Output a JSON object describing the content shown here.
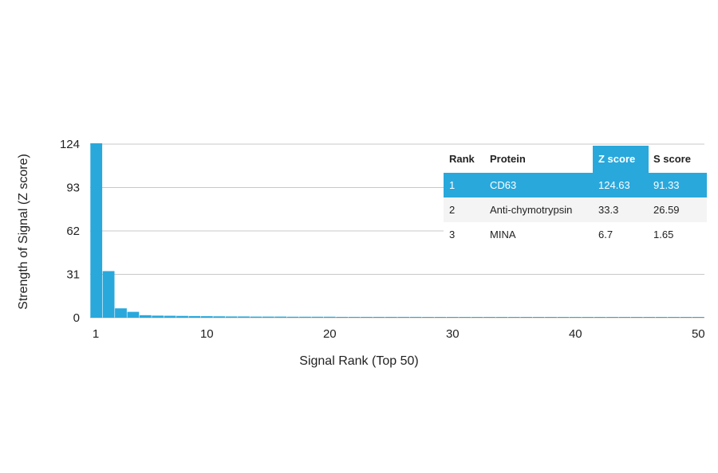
{
  "colors": {
    "bar": "#29a8dc",
    "highlight": "#29a8dc",
    "grid": "#c8c8c8",
    "text": "#222222",
    "alt_row": "#f4f4f4"
  },
  "chart_data": {
    "type": "bar",
    "xlabel": "Signal Rank (Top 50)",
    "ylabel": "Strength of Signal (Z score)",
    "xlim": [
      1,
      50
    ],
    "ylim": [
      0,
      124
    ],
    "xticks": [
      "1",
      "10",
      "20",
      "30",
      "40",
      "50"
    ],
    "yticks": [
      "0",
      "31",
      "62",
      "93",
      "124"
    ],
    "grid": "horizontal",
    "categories": [
      1,
      2,
      3,
      4,
      5,
      6,
      7,
      8,
      9,
      10,
      11,
      12,
      13,
      14,
      15,
      16,
      17,
      18,
      19,
      20,
      21,
      22,
      23,
      24,
      25,
      26,
      27,
      28,
      29,
      30,
      31,
      32,
      33,
      34,
      35,
      36,
      37,
      38,
      39,
      40,
      41,
      42,
      43,
      44,
      45,
      46,
      47,
      48,
      49,
      50
    ],
    "values": [
      124.63,
      33.3,
      6.7,
      4.2,
      1.8,
      1.5,
      1.4,
      1.3,
      1.2,
      1.1,
      1.0,
      0.9,
      0.9,
      0.8,
      0.8,
      0.8,
      0.7,
      0.7,
      0.7,
      0.7,
      0.6,
      0.6,
      0.6,
      0.6,
      0.6,
      0.6,
      0.6,
      0.5,
      0.5,
      0.5,
      0.5,
      0.5,
      0.5,
      0.5,
      0.5,
      0.5,
      0.5,
      0.5,
      0.5,
      0.5,
      0.5,
      0.5,
      0.5,
      0.5,
      0.5,
      0.5,
      0.5,
      0.5,
      0.5,
      0.5
    ]
  },
  "table": {
    "headers": [
      "Rank",
      "Protein",
      "Z score",
      "S score"
    ],
    "highlight_column": 2,
    "rows": [
      [
        "1",
        "CD63",
        "124.63",
        "91.33"
      ],
      [
        "2",
        "Anti-chymotrypsin",
        "33.3",
        "26.59"
      ],
      [
        "3",
        "MINA",
        "6.7",
        "1.65"
      ]
    ],
    "highlight_row": 0
  }
}
